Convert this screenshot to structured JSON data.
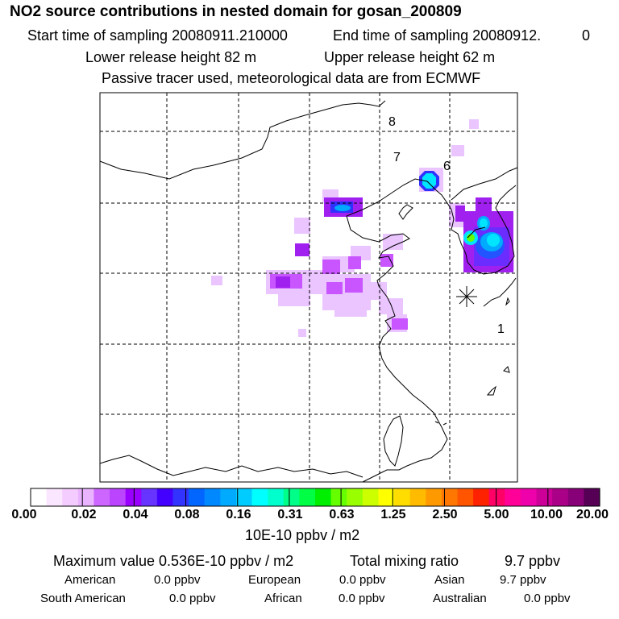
{
  "header": {
    "title": "NO2 source contributions in nested domain for gosan_200809",
    "start_label": "Start time of sampling 20080911.210000",
    "end_label": "End time of sampling 20080912.",
    "end_suffix": "0",
    "lower_release": "Lower release height   82 m",
    "upper_release": "Upper release height   62 m",
    "tracer_note": "Passive tracer used, meteorological data are from ECMWF"
  },
  "map": {
    "trajectory_labels": [
      "8",
      "7",
      "6",
      "1"
    ],
    "receptor_symbol": "gosan-receptor"
  },
  "colorbar": {
    "tick_labels": [
      "0.00",
      "0.02",
      "0.04",
      "0.08",
      "0.16",
      "0.31",
      "0.63",
      "1.25",
      "2.50",
      "5.00",
      "10.00",
      "20.00"
    ],
    "unit": "10E-10 ppbv / m2",
    "colors": [
      "#ffffff",
      "#fbe6ff",
      "#f4ccff",
      "#eab3ff",
      "#cc66ff",
      "#bb44ff",
      "#9900ff",
      "#6633ff",
      "#4400ff",
      "#3333ff",
      "#0066ff",
      "#0088ff",
      "#00aaff",
      "#00ccff",
      "#00ffff",
      "#00ffcc",
      "#00ff88",
      "#00ff44",
      "#00ee00",
      "#66ff00",
      "#99ff00",
      "#ccff00",
      "#ffff00",
      "#ffdd00",
      "#ffbb00",
      "#ff9900",
      "#ff7700",
      "#ff5500",
      "#ff2200",
      "#ff0066",
      "#ff0099",
      "#ee00aa",
      "#cc0099",
      "#aa0088",
      "#880077",
      "#550055"
    ]
  },
  "summary": {
    "max_label": "Maximum value  0.536E-10 ppbv / m2",
    "total_label": "Total mixing ratio",
    "total_value": "9.7 ppbv",
    "regions": [
      {
        "name": "American",
        "value": "0.0 ppbv"
      },
      {
        "name": "European",
        "value": "0.0 ppbv"
      },
      {
        "name": "Asian",
        "value": "9.7 ppbv"
      },
      {
        "name": "South American",
        "value": "0.0 ppbv"
      },
      {
        "name": "African",
        "value": "0.0 ppbv"
      },
      {
        "name": "Australian",
        "value": "0.0 ppbv"
      }
    ]
  }
}
